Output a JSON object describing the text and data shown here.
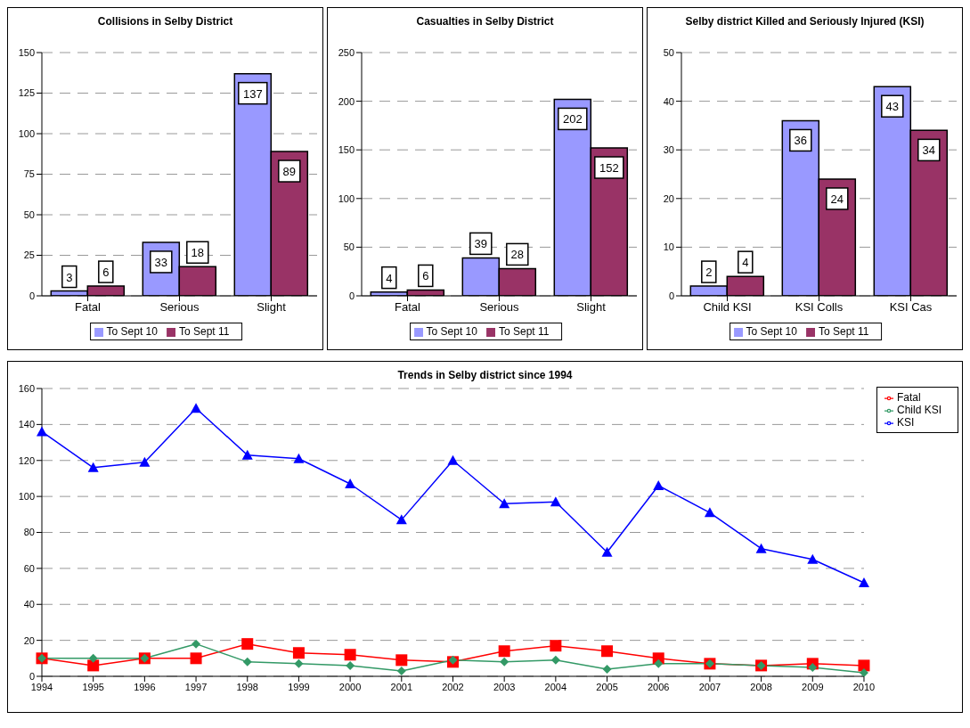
{
  "chart_data": [
    {
      "type": "bar",
      "title": "Collisions in Selby District",
      "categories": [
        "Fatal",
        "Serious",
        "Slight"
      ],
      "series": [
        {
          "name": "To Sept 10",
          "color": "#9999ff",
          "values": [
            3,
            33,
            137
          ]
        },
        {
          "name": "To Sept 11",
          "color": "#993366",
          "values": [
            6,
            18,
            89
          ]
        }
      ],
      "ylim": [
        0,
        150
      ],
      "yticks": [
        0,
        25,
        50,
        75,
        100,
        125,
        150
      ],
      "grid": "y",
      "legend": "bottom",
      "data_labels": true
    },
    {
      "type": "bar",
      "title": "Casualties in Selby District",
      "categories": [
        "Fatal",
        "Serious",
        "Slight"
      ],
      "series": [
        {
          "name": "To Sept 10",
          "color": "#9999ff",
          "values": [
            4,
            39,
            202
          ]
        },
        {
          "name": "To Sept 11",
          "color": "#993366",
          "values": [
            6,
            28,
            152
          ]
        }
      ],
      "ylim": [
        0,
        250
      ],
      "yticks": [
        0,
        50,
        100,
        150,
        200,
        250
      ],
      "grid": "y",
      "legend": "bottom",
      "data_labels": true
    },
    {
      "type": "bar",
      "title": "Selby district Killed and Seriously Injured (KSI)",
      "categories": [
        "Child KSI",
        "KSI Colls",
        "KSI Cas"
      ],
      "series": [
        {
          "name": "To Sept 10",
          "color": "#9999ff",
          "values": [
            2,
            36,
            43
          ]
        },
        {
          "name": "To Sept 11",
          "color": "#993366",
          "values": [
            4,
            24,
            34
          ]
        }
      ],
      "ylim": [
        0,
        50
      ],
      "yticks": [
        0,
        10,
        20,
        30,
        40,
        50
      ],
      "grid": "y",
      "legend": "bottom",
      "data_labels": true
    },
    {
      "type": "line",
      "title": "Trends in Selby district since 1994",
      "categories": [
        "1994",
        "1995",
        "1996",
        "1997",
        "1998",
        "1999",
        "2000",
        "2001",
        "2002",
        "2003",
        "2004",
        "2005",
        "2006",
        "2007",
        "2008",
        "2009",
        "2010"
      ],
      "series": [
        {
          "name": "Fatal",
          "color": "#ff0000",
          "marker": "square",
          "values": [
            10,
            6,
            10,
            10,
            18,
            13,
            12,
            9,
            8,
            14,
            17,
            14,
            10,
            7,
            6,
            7,
            6
          ]
        },
        {
          "name": "Child KSI",
          "color": "#339966",
          "marker": "diamond",
          "values": [
            10,
            10,
            10,
            18,
            8,
            7,
            6,
            3,
            9,
            8,
            9,
            4,
            7,
            7,
            6,
            5,
            2
          ]
        },
        {
          "name": "KSI",
          "color": "#0000ff",
          "marker": "triangle",
          "values": [
            136,
            116,
            119,
            149,
            123,
            121,
            107,
            87,
            120,
            96,
            97,
            69,
            106,
            91,
            71,
            65,
            52
          ]
        }
      ],
      "ylim": [
        0,
        160
      ],
      "yticks": [
        0,
        20,
        40,
        60,
        80,
        100,
        120,
        140,
        160
      ],
      "grid": "y",
      "legend": "top right",
      "line_style": "solid"
    }
  ]
}
